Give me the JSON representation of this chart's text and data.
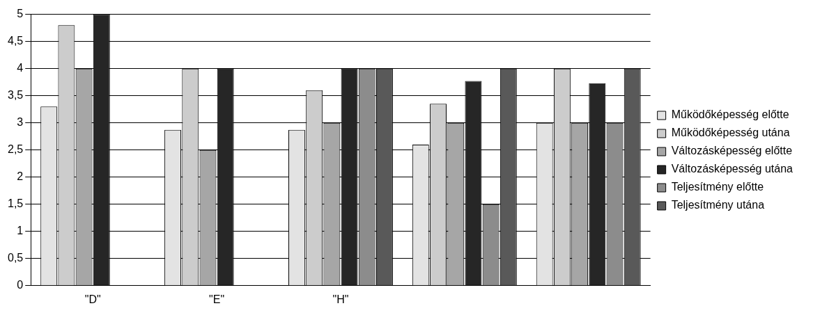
{
  "chart_data": {
    "type": "bar",
    "categories": [
      "\"D\"",
      "\"E\"",
      "\"H\"",
      null,
      null
    ],
    "series": [
      {
        "name": "Működőképesség előtte",
        "color": "#e3e3e3",
        "values": [
          3.3,
          2.87,
          2.87,
          2.6,
          3.0
        ]
      },
      {
        "name": "Működőképesség utána",
        "color": "#cccccc",
        "values": [
          4.8,
          4.0,
          3.6,
          3.35,
          4.0
        ]
      },
      {
        "name": "Változásképesség előtte",
        "color": "#a6a6a6",
        "values": [
          4.0,
          2.5,
          3.0,
          3.0,
          3.0
        ]
      },
      {
        "name": "Változásképesség utána",
        "color": "#262626",
        "values": [
          5.0,
          4.0,
          4.0,
          3.77,
          3.73
        ]
      },
      {
        "name": "Teljesítmény előtte",
        "color": "#8c8c8c",
        "values": [
          null,
          null,
          4.0,
          1.5,
          3.0
        ]
      },
      {
        "name": "Teljesítmény utána",
        "color": "#595959",
        "values": [
          null,
          null,
          4.0,
          4.0,
          4.0
        ]
      }
    ],
    "ylim": [
      0,
      5
    ],
    "yticks": [
      0,
      {
        "value": 0.5,
        "label": "0,5"
      },
      1,
      {
        "value": 1.5,
        "label": "1,5"
      },
      2,
      {
        "value": 2.5,
        "label": "2,5"
      },
      3,
      {
        "value": 3.5,
        "label": "3,5"
      },
      4,
      {
        "value": 4.5,
        "label": "4,5"
      },
      5
    ],
    "grid": "y",
    "legend": "right"
  }
}
